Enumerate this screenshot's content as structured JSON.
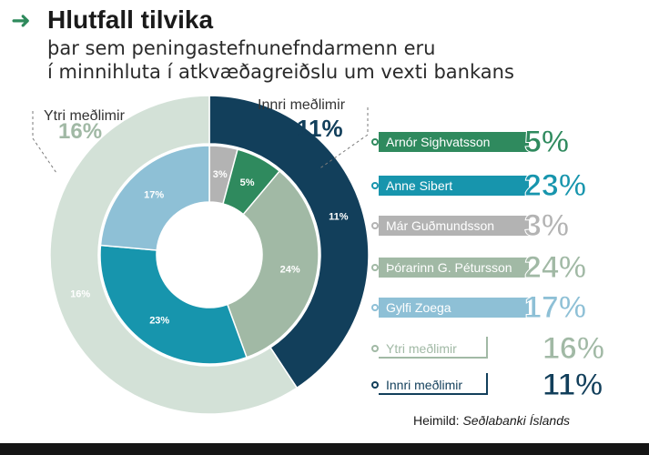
{
  "header": {
    "arrow_icon": "arrow-right-icon",
    "title": "Hlutfall tilvika",
    "subtitle_lines": [
      "þar sem peningastefnunefndarmenn eru",
      "í minnihluta í atkvæðagreiðslu um vexti bankans"
    ]
  },
  "colors": {
    "arrow": "#2e8a5c",
    "arnor": "#2f8a5e",
    "anne": "#1795ad",
    "mar": "#b3b3b3",
    "thorarinn": "#a1b9a5",
    "gylfi": "#8ec0d6",
    "ytri": "#d3e1d7",
    "innri": "#123f5b"
  },
  "chart_data": {
    "type": "pie",
    "style": "nested-donut",
    "outer_ring": [
      {
        "name": "Innri meðlimir",
        "value": 11,
        "label": "11%",
        "color": "#123f5b"
      },
      {
        "name": "Ytri meðlimir",
        "value": 16,
        "label": "16%",
        "color": "#d3e1d7"
      }
    ],
    "inner_ring": [
      {
        "name": "Már Guðmundsson",
        "value": 3,
        "label": "3%",
        "color": "#b3b3b3"
      },
      {
        "name": "Arnór Sighvatsson",
        "value": 5,
        "label": "5%",
        "color": "#2f8a5e"
      },
      {
        "name": "Þórarinn G. Pétursson",
        "value": 24,
        "label": "24%",
        "color": "#a1b9a5"
      },
      {
        "name": "Anne Sibert",
        "value": 23,
        "label": "23%",
        "color": "#1795ad"
      },
      {
        "name": "Gylfi Zoega",
        "value": 17,
        "label": "17%",
        "color": "#8ec0d6"
      }
    ],
    "callouts": {
      "ytri": {
        "label": "Ytri meðlimir",
        "value": "16%"
      },
      "innri": {
        "label": "Innri meðlimir",
        "value": "11%"
      }
    },
    "legend": [
      {
        "name": "Arnór Sighvatsson",
        "value": "5%",
        "color": "#2f8a5e",
        "style": "filled"
      },
      {
        "name": "Anne Sibert",
        "value": "23%",
        "color": "#1795ad",
        "style": "filled"
      },
      {
        "name": "Már Guðmundsson",
        "value": "3%",
        "color": "#b3b3b3",
        "style": "filled"
      },
      {
        "name": "Þórarinn G. Pétursson",
        "value": "24%",
        "color": "#a1b9a5",
        "style": "filled"
      },
      {
        "name": "Gylfi Zoega",
        "value": "17%",
        "color": "#8ec0d6",
        "style": "filled"
      },
      {
        "name": "Ytri meðlimir",
        "value": "16%",
        "color": "#a1b9a5",
        "style": "outline"
      },
      {
        "name": "Innri meðlimir",
        "value": "11%",
        "color": "#123f5b",
        "style": "outline"
      }
    ],
    "legend_placement": "right"
  },
  "source": {
    "prefix": "Heimild:",
    "name": "Seðlabanki Íslands"
  }
}
